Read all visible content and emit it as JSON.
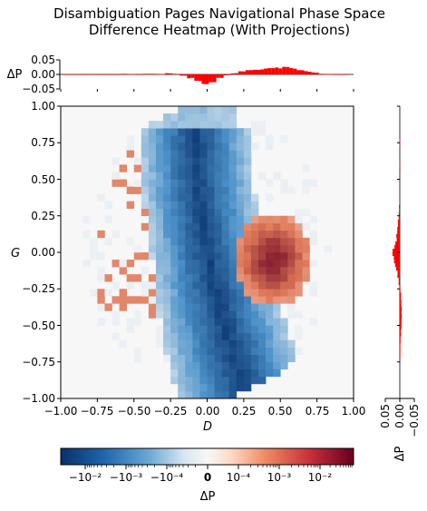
{
  "chart_data": {
    "type": "heatmap",
    "title_line1": "Disambiguation Pages Navigational Phase Space",
    "title_line2": "Difference Heatmap (With Projections)",
    "xlabel": "D",
    "ylabel": "G",
    "xlim": [
      -1.0,
      1.0
    ],
    "ylim": [
      -1.0,
      1.0
    ],
    "xticks": [
      "−1.00",
      "−0.75",
      "−0.50",
      "−0.25",
      "0.00",
      "0.25",
      "0.50",
      "0.75",
      "1.00"
    ],
    "yticks": [
      "1.00",
      "0.75",
      "0.50",
      "0.25",
      "0.00",
      "−0.25",
      "−0.50",
      "−0.75",
      "−1.00"
    ],
    "grid": false,
    "grid_bins": 40,
    "colormap": "RdBu_r",
    "colors": {
      "negative_strong": "#08306b",
      "negative_mid": "#4a90c8",
      "neutral": "#f7f7f7",
      "positive_mid": "#e07a5a",
      "positive_strong": "#67001f"
    },
    "colorbar": {
      "label": "ΔP",
      "scale": "symlog",
      "tick_labels": [
        "−10⁻²",
        "−10⁻³",
        "−10⁻⁴",
        "0",
        "10⁻⁴",
        "10⁻³",
        "10⁻²"
      ],
      "tick_values": [
        -0.01,
        -0.001,
        -0.0001,
        0,
        0.0001,
        0.001,
        0.01
      ]
    },
    "top_marginal": {
      "ylabel": "ΔP",
      "yticks": [
        "0.05",
        "0.00",
        "−0.05"
      ],
      "ylim": [
        -0.05,
        0.05
      ],
      "bar_color": "#ff0000",
      "series": [
        {
          "x": -0.95,
          "dp": 0.0
        },
        {
          "x": -0.9,
          "dp": 0.0
        },
        {
          "x": -0.85,
          "dp": 0.0
        },
        {
          "x": -0.8,
          "dp": 0.0
        },
        {
          "x": -0.75,
          "dp": -0.001
        },
        {
          "x": -0.7,
          "dp": -0.001
        },
        {
          "x": -0.65,
          "dp": 0.0
        },
        {
          "x": -0.6,
          "dp": -0.001
        },
        {
          "x": -0.55,
          "dp": 0.002
        },
        {
          "x": -0.5,
          "dp": 0.001
        },
        {
          "x": -0.45,
          "dp": -0.001
        },
        {
          "x": -0.4,
          "dp": 0.002
        },
        {
          "x": -0.35,
          "dp": 0.002
        },
        {
          "x": -0.3,
          "dp": 0.001
        },
        {
          "x": -0.25,
          "dp": 0.004
        },
        {
          "x": -0.2,
          "dp": 0.002
        },
        {
          "x": -0.15,
          "dp": -0.004
        },
        {
          "x": -0.1,
          "dp": -0.012
        },
        {
          "x": -0.05,
          "dp": -0.022
        },
        {
          "x": 0.0,
          "dp": -0.03
        },
        {
          "x": 0.05,
          "dp": -0.025
        },
        {
          "x": 0.1,
          "dp": -0.012
        },
        {
          "x": 0.15,
          "dp": -0.003
        },
        {
          "x": 0.2,
          "dp": 0.004
        },
        {
          "x": 0.25,
          "dp": 0.01
        },
        {
          "x": 0.3,
          "dp": 0.014
        },
        {
          "x": 0.35,
          "dp": 0.016
        },
        {
          "x": 0.4,
          "dp": 0.018
        },
        {
          "x": 0.45,
          "dp": 0.02
        },
        {
          "x": 0.5,
          "dp": 0.022
        },
        {
          "x": 0.55,
          "dp": 0.024
        },
        {
          "x": 0.6,
          "dp": 0.02
        },
        {
          "x": 0.65,
          "dp": 0.016
        },
        {
          "x": 0.7,
          "dp": 0.01
        },
        {
          "x": 0.75,
          "dp": 0.006
        },
        {
          "x": 0.8,
          "dp": 0.002
        },
        {
          "x": 0.85,
          "dp": 0.001
        },
        {
          "x": 0.9,
          "dp": 0.0
        },
        {
          "x": 0.95,
          "dp": 0.0
        }
      ]
    },
    "right_marginal": {
      "xlabel": "ΔP",
      "xticks": [
        "0.05",
        "0.00",
        "−0.05"
      ],
      "xlim": [
        -0.05,
        0.05
      ],
      "bar_color": "#ff0000",
      "series": [
        {
          "y": 0.75,
          "dp": 0.001
        },
        {
          "y": 0.6,
          "dp": 0.001
        },
        {
          "y": 0.5,
          "dp": 0.002
        },
        {
          "y": 0.4,
          "dp": 0.002
        },
        {
          "y": 0.3,
          "dp": 0.003
        },
        {
          "y": 0.25,
          "dp": 0.004
        },
        {
          "y": 0.2,
          "dp": 0.006
        },
        {
          "y": 0.15,
          "dp": 0.008
        },
        {
          "y": 0.1,
          "dp": 0.012
        },
        {
          "y": 0.05,
          "dp": 0.016
        },
        {
          "y": 0.025,
          "dp": 0.02
        },
        {
          "y": 0.0,
          "dp": 0.024
        },
        {
          "y": -0.025,
          "dp": 0.02
        },
        {
          "y": -0.05,
          "dp": 0.018
        },
        {
          "y": -0.075,
          "dp": 0.014
        },
        {
          "y": -0.1,
          "dp": 0.012
        },
        {
          "y": -0.15,
          "dp": 0.008
        },
        {
          "y": -0.2,
          "dp": 0.004
        },
        {
          "y": -0.25,
          "dp": -0.002
        },
        {
          "y": -0.3,
          "dp": -0.004
        },
        {
          "y": -0.35,
          "dp": -0.005
        },
        {
          "y": -0.4,
          "dp": -0.006
        },
        {
          "y": -0.45,
          "dp": -0.006
        },
        {
          "y": -0.5,
          "dp": -0.005
        },
        {
          "y": -0.55,
          "dp": -0.004
        },
        {
          "y": -0.6,
          "dp": -0.003
        },
        {
          "y": -0.65,
          "dp": -0.002
        },
        {
          "y": -0.7,
          "dp": -0.001
        }
      ]
    }
  }
}
